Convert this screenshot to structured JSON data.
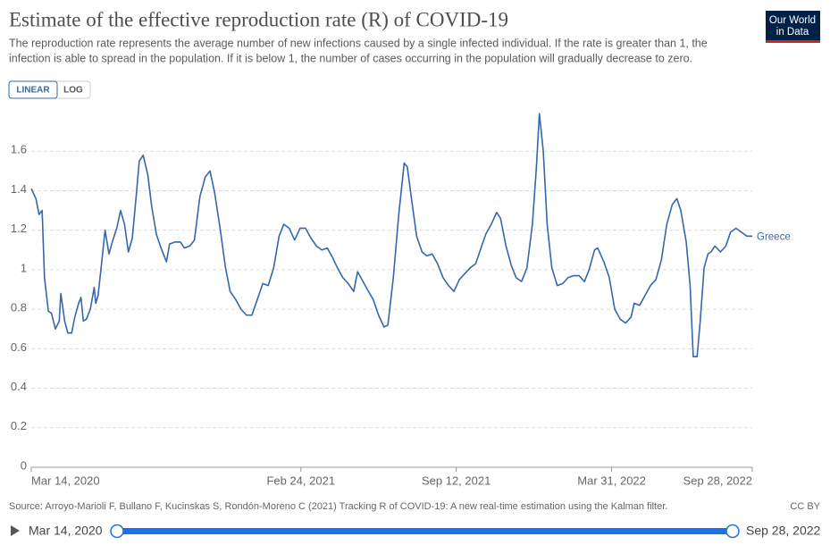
{
  "chart_data": {
    "type": "line",
    "title": "Estimate of the effective reproduction rate (R) of COVID-19",
    "subtitle": [
      "The reproduction rate represents the average number of new infections caused by a single infected individual. If the rate is greater than 1, the",
      "infection is able to spread in the population. If it is below 1, the number of cases occurring in the population will gradually decrease to zero."
    ],
    "logo": [
      "Our World",
      "in Data"
    ],
    "scale_options": [
      "LINEAR",
      "LOG"
    ],
    "log_scale": false,
    "grid": true,
    "source": "Source: Arroyo-Marioli F, Bullano F, Kucinskas S, Rondón-Moreno C (2021) Tracking R of COVID-19: A new real-time estimation using the Kalman filter.",
    "license": "CC BY",
    "timeline": {
      "start": "Mar 14, 2020",
      "end": "Sep 28, 2022"
    },
    "xlim": [
      "2020-03-14",
      "2022-09-28"
    ],
    "xticks": [
      {
        "value": "2020-03-14",
        "label": "Mar 14, 2020"
      },
      {
        "value": "2021-02-24",
        "label": "Feb 24, 2021"
      },
      {
        "value": "2021-09-12",
        "label": "Sep 12, 2021"
      },
      {
        "value": "2022-03-31",
        "label": "Mar 31, 2022"
      },
      {
        "value": "2022-09-28",
        "label": "Sep 28, 2022"
      }
    ],
    "ylim": [
      0,
      1.8
    ],
    "yticks": [
      0,
      0.2,
      0.4,
      0.6,
      0.8,
      1,
      1.2,
      1.4,
      1.6
    ],
    "x": [
      "2020-03-14",
      "2020-03-20",
      "2020-03-24",
      "2020-03-28",
      "2020-03-31",
      "2020-04-05",
      "2020-04-09",
      "2020-04-14",
      "2020-04-19",
      "2020-04-21",
      "2020-04-26",
      "2020-04-30",
      "2020-05-05",
      "2020-05-09",
      "2020-05-14",
      "2020-05-17",
      "2020-05-20",
      "2020-05-24",
      "2020-05-29",
      "2020-06-03",
      "2020-06-05",
      "2020-06-08",
      "2020-06-13",
      "2020-06-17",
      "2020-06-22",
      "2020-06-27",
      "2020-07-02",
      "2020-07-07",
      "2020-07-12",
      "2020-07-17",
      "2020-07-22",
      "2020-07-27",
      "2020-07-31",
      "2020-08-05",
      "2020-08-11",
      "2020-08-16",
      "2020-08-22",
      "2020-08-28",
      "2020-09-04",
      "2020-09-08",
      "2020-09-15",
      "2020-09-22",
      "2020-09-27",
      "2020-10-04",
      "2020-10-10",
      "2020-10-17",
      "2020-10-24",
      "2020-10-30",
      "2020-11-05",
      "2020-11-12",
      "2020-11-19",
      "2020-11-25",
      "2020-12-02",
      "2020-12-09",
      "2020-12-16",
      "2020-12-23",
      "2020-12-30",
      "2021-01-06",
      "2021-01-13",
      "2021-01-20",
      "2021-01-27",
      "2021-02-02",
      "2021-02-09",
      "2021-02-16",
      "2021-02-23",
      "2021-03-02",
      "2021-03-09",
      "2021-03-16",
      "2021-03-23",
      "2021-03-30",
      "2021-04-06",
      "2021-04-12",
      "2021-04-19",
      "2021-04-26",
      "2021-05-03",
      "2021-05-08",
      "2021-05-15",
      "2021-05-22",
      "2021-05-28",
      "2021-06-04",
      "2021-06-11",
      "2021-06-16",
      "2021-06-23",
      "2021-06-30",
      "2021-07-07",
      "2021-07-11",
      "2021-07-16",
      "2021-07-23",
      "2021-07-30",
      "2021-08-05",
      "2021-08-12",
      "2021-08-19",
      "2021-08-26",
      "2021-09-02",
      "2021-09-09",
      "2021-09-16",
      "2021-09-23",
      "2021-09-30",
      "2021-10-07",
      "2021-10-13",
      "2021-10-20",
      "2021-10-27",
      "2021-11-03",
      "2021-11-08",
      "2021-11-15",
      "2021-11-22",
      "2021-11-28",
      "2021-12-05",
      "2021-12-12",
      "2021-12-19",
      "2021-12-24",
      "2021-12-28",
      "2022-01-02",
      "2022-01-07",
      "2022-01-13",
      "2022-01-20",
      "2022-01-27",
      "2022-02-03",
      "2022-02-10",
      "2022-02-17",
      "2022-02-24",
      "2022-03-02",
      "2022-03-09",
      "2022-03-13",
      "2022-03-21",
      "2022-03-28",
      "2022-04-04",
      "2022-04-11",
      "2022-04-18",
      "2022-04-25",
      "2022-04-29",
      "2022-05-06",
      "2022-05-13",
      "2022-05-20",
      "2022-05-27",
      "2022-06-03",
      "2022-06-10",
      "2022-06-17",
      "2022-06-23",
      "2022-06-28",
      "2022-07-05",
      "2022-07-10",
      "2022-07-14",
      "2022-07-19",
      "2022-07-23",
      "2022-07-28",
      "2022-08-02",
      "2022-08-06",
      "2022-08-11",
      "2022-08-18",
      "2022-08-25",
      "2022-08-31",
      "2022-09-07",
      "2022-09-14",
      "2022-09-21",
      "2022-09-28"
    ],
    "series": [
      {
        "name": "Greece",
        "color": "#3567ac",
        "values": [
          1.41,
          1.36,
          1.28,
          1.3,
          0.96,
          0.79,
          0.78,
          0.7,
          0.74,
          0.88,
          0.74,
          0.68,
          0.68,
          0.76,
          0.83,
          0.86,
          0.74,
          0.75,
          0.8,
          0.91,
          0.83,
          0.87,
          1.05,
          1.2,
          1.08,
          1.15,
          1.21,
          1.3,
          1.23,
          1.09,
          1.16,
          1.37,
          1.55,
          1.58,
          1.48,
          1.32,
          1.18,
          1.11,
          1.04,
          1.13,
          1.14,
          1.14,
          1.11,
          1.12,
          1.15,
          1.37,
          1.47,
          1.5,
          1.39,
          1.21,
          1.01,
          0.89,
          0.85,
          0.8,
          0.77,
          0.77,
          0.85,
          0.93,
          0.92,
          1.01,
          1.17,
          1.23,
          1.21,
          1.15,
          1.21,
          1.21,
          1.16,
          1.12,
          1.1,
          1.11,
          1.06,
          1.01,
          0.96,
          0.93,
          0.89,
          0.99,
          0.94,
          0.89,
          0.85,
          0.77,
          0.71,
          0.72,
          0.96,
          1.28,
          1.54,
          1.52,
          1.37,
          1.17,
          1.09,
          1.07,
          1.08,
          1.03,
          0.96,
          0.92,
          0.89,
          0.95,
          0.98,
          1.01,
          1.03,
          1.1,
          1.18,
          1.23,
          1.29,
          1.26,
          1.12,
          1.02,
          0.96,
          0.94,
          1.01,
          1.23,
          1.51,
          1.79,
          1.6,
          1.23,
          1.01,
          0.92,
          0.93,
          0.96,
          0.97,
          0.97,
          0.94,
          1.0,
          1.1,
          1.11,
          1.04,
          0.96,
          0.8,
          0.75,
          0.73,
          0.76,
          0.83,
          0.82,
          0.87,
          0.92,
          0.95,
          1.05,
          1.23,
          1.33,
          1.36,
          1.3,
          1.14,
          0.92,
          0.56,
          0.56,
          0.74,
          1.01,
          1.08,
          1.09,
          1.12,
          1.09,
          1.12,
          1.19,
          1.21,
          1.19,
          1.17,
          1.17
        ]
      }
    ]
  }
}
